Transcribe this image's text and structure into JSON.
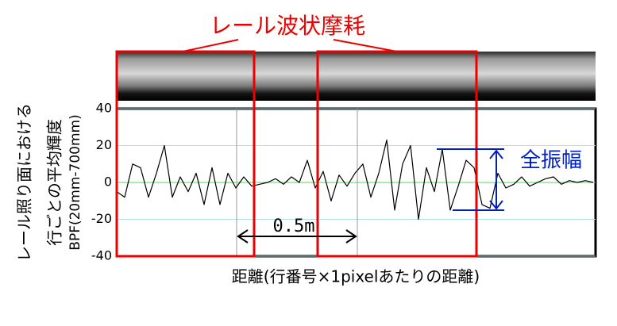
{
  "chart_data": {
    "type": "line",
    "title": "レール波状摩耗",
    "ylabel": [
      "レール照り面における",
      "行ごとの平均輝度",
      "BPF(20mm-700mm)"
    ],
    "xlabel": "距離(行番号×1pixelあたりの距離)",
    "scale_label": "0.5m",
    "amplitude_label": "全振幅",
    "ylim": [
      -40,
      40
    ],
    "yticks": [
      -40,
      -20,
      0,
      20,
      40
    ],
    "grid": true,
    "color": "#000000",
    "values": [
      -5,
      -8,
      10,
      8,
      -8,
      5,
      20,
      -8,
      3,
      -5,
      5,
      -12,
      8,
      -12,
      5,
      -3,
      3,
      -2,
      -1,
      0,
      2,
      -1,
      3,
      0,
      12,
      -3,
      6,
      -10,
      4,
      -2,
      5,
      10,
      -8,
      5,
      23,
      -15,
      10,
      20,
      -20,
      8,
      -5,
      18,
      -15,
      -2,
      12,
      8,
      -12,
      -14,
      5,
      -3,
      -1,
      3,
      -2,
      0,
      2,
      3,
      -1,
      1,
      0,
      1,
      0
    ]
  }
}
